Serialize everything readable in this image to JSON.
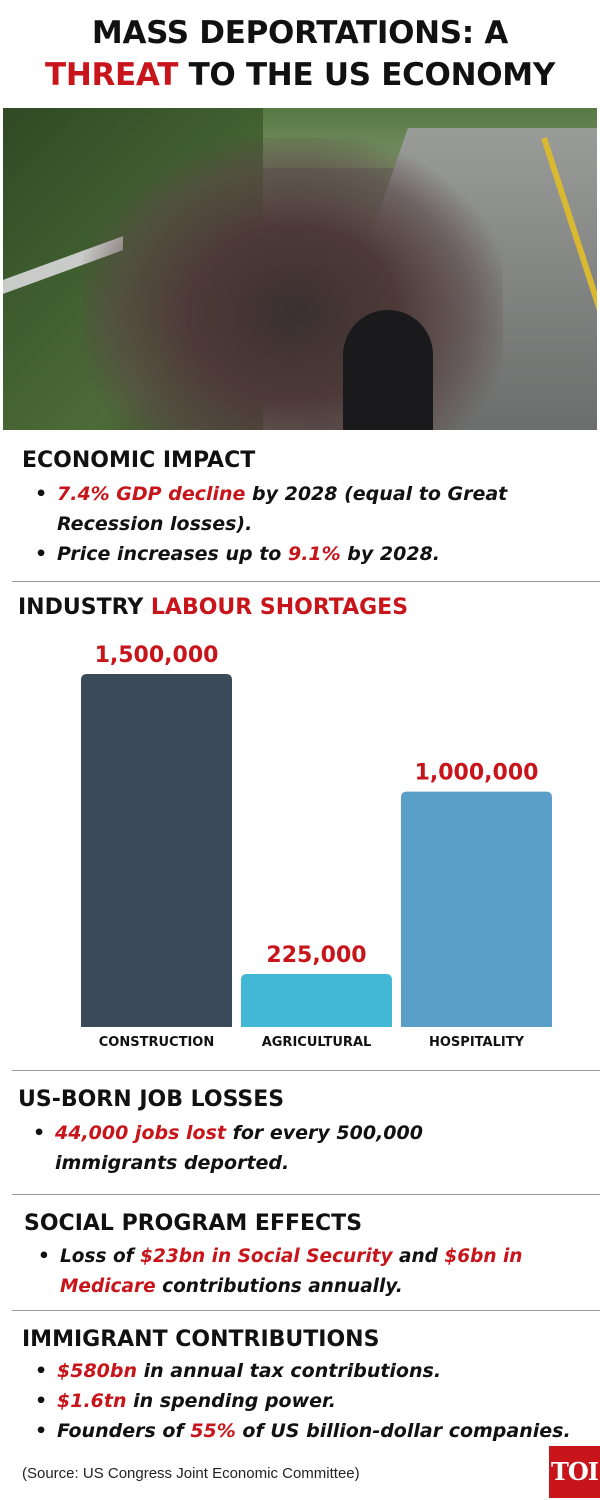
{
  "header": {
    "title_line1": "MASS DEPORTATIONS: A",
    "title_line2_red": "THREAT",
    "title_line2_rest": " TO THE US ECONOMY"
  },
  "economic_impact": {
    "heading": "ECONOMIC IMPACT",
    "bullets": [
      {
        "hl": "7.4% GDP decline",
        "rest": " by 2028 (equal to Great Recession losses)."
      },
      {
        "pre": "Price increases up to ",
        "hl": "9.1%",
        "rest": " by 2028."
      }
    ]
  },
  "labour": {
    "heading_black": "INDUSTRY ",
    "heading_red": "LABOUR SHORTAGES"
  },
  "chart_data": {
    "type": "bar",
    "title": "INDUSTRY LABOUR SHORTAGES",
    "categories": [
      "CONSTRUCTION",
      "AGRICULTURAL",
      "HOSPITALITY"
    ],
    "values": [
      1500000,
      225000,
      1000000
    ],
    "value_labels": [
      "1,500,000",
      "225,000",
      "1,000,000"
    ],
    "colors": [
      "#3a4a58",
      "#42b7d6",
      "#5a9fc7"
    ],
    "label_color": "#c8151b",
    "ylim": [
      0,
      1500000
    ],
    "grid": false,
    "legend": "none"
  },
  "job_losses": {
    "heading": "US-BORN JOB LOSSES",
    "bullets": [
      {
        "hl": "44,000 jobs lost",
        "rest": " for every 500,000 immigrants deported."
      }
    ]
  },
  "social": {
    "heading": "SOCIAL PROGRAM EFFECTS",
    "bullets": [
      {
        "pre": "Loss of ",
        "hl": "$23bn in Social Security",
        "mid": " and ",
        "hl2": "$6bn in Medicare",
        "rest": " contributions annually."
      }
    ]
  },
  "contributions": {
    "heading": "IMMIGRANT CONTRIBUTIONS",
    "bullets": [
      {
        "hl": "$580bn",
        "rest": " in annual tax contributions."
      },
      {
        "hl": "$1.6tn",
        "rest": " in spending power."
      },
      {
        "pre": "Founders of ",
        "hl": "55%",
        "rest": " of US billion-dollar companies."
      }
    ]
  },
  "footer": {
    "source": "(Source: US Congress Joint Economic Committee)",
    "logo_text": "TOI"
  }
}
